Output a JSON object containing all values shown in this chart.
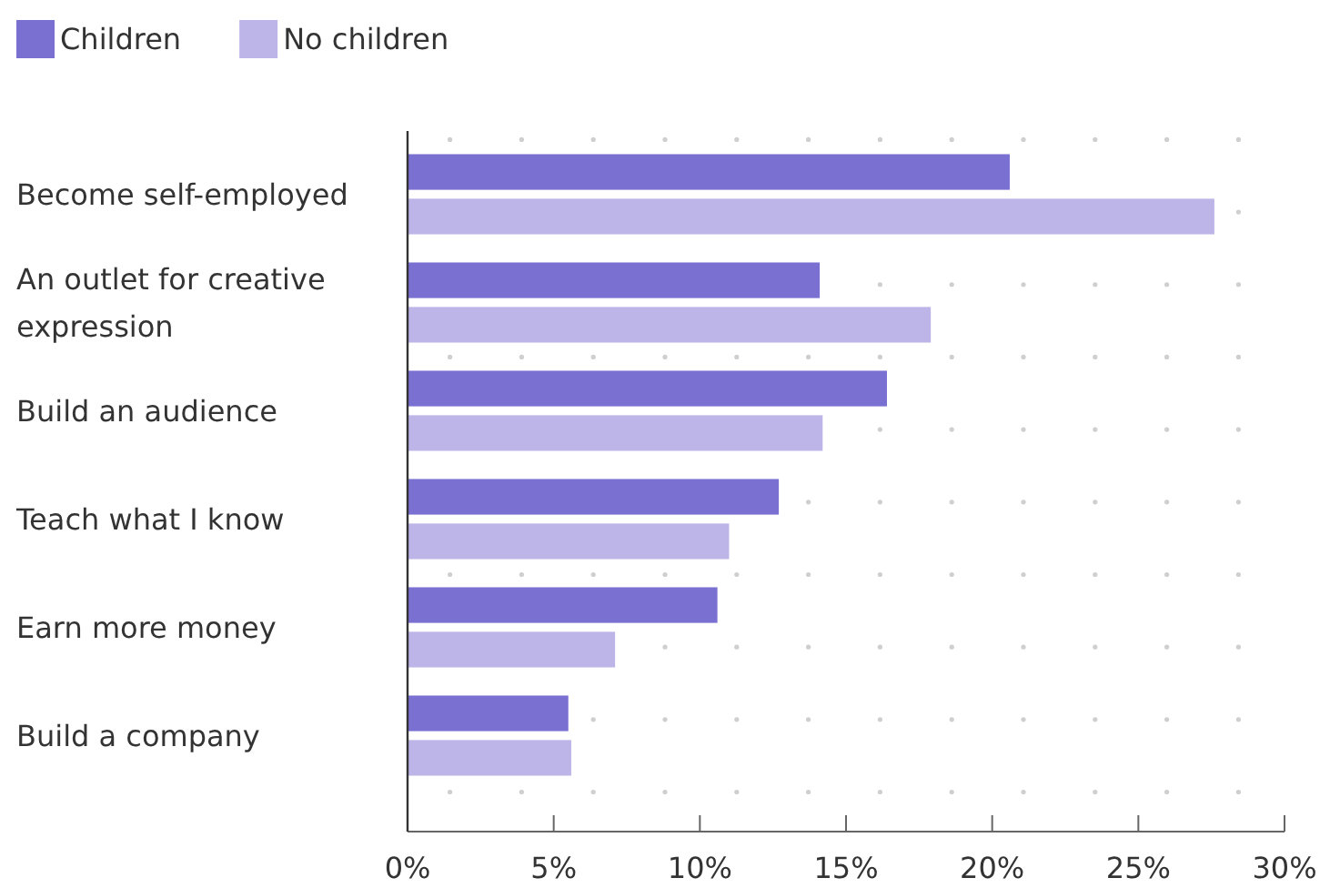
{
  "chart_data": {
    "type": "bar",
    "orientation": "horizontal",
    "categories": [
      "Become self-employed",
      "An outlet for creative expression",
      "Build an audience",
      "Teach what I know",
      "Earn more money",
      "Build a company"
    ],
    "series": [
      {
        "name": "Children",
        "color": "#7a70d2",
        "values": [
          20.6,
          14.1,
          16.4,
          12.7,
          10.6,
          5.5
        ]
      },
      {
        "name": "No children",
        "color": "#bdb4e8",
        "values": [
          27.6,
          17.9,
          14.2,
          11.0,
          7.1,
          5.6
        ]
      }
    ],
    "xlim": [
      0,
      30
    ],
    "xticks": [
      {
        "value": 0,
        "label": "0%"
      },
      {
        "value": 5,
        "label": "5%"
      },
      {
        "value": 10,
        "label": "10%"
      },
      {
        "value": 15,
        "label": "15%"
      },
      {
        "value": 20,
        "label": "20%"
      },
      {
        "value": 25,
        "label": "25%"
      },
      {
        "value": 30,
        "label": "30%"
      }
    ],
    "legend": "top left"
  }
}
